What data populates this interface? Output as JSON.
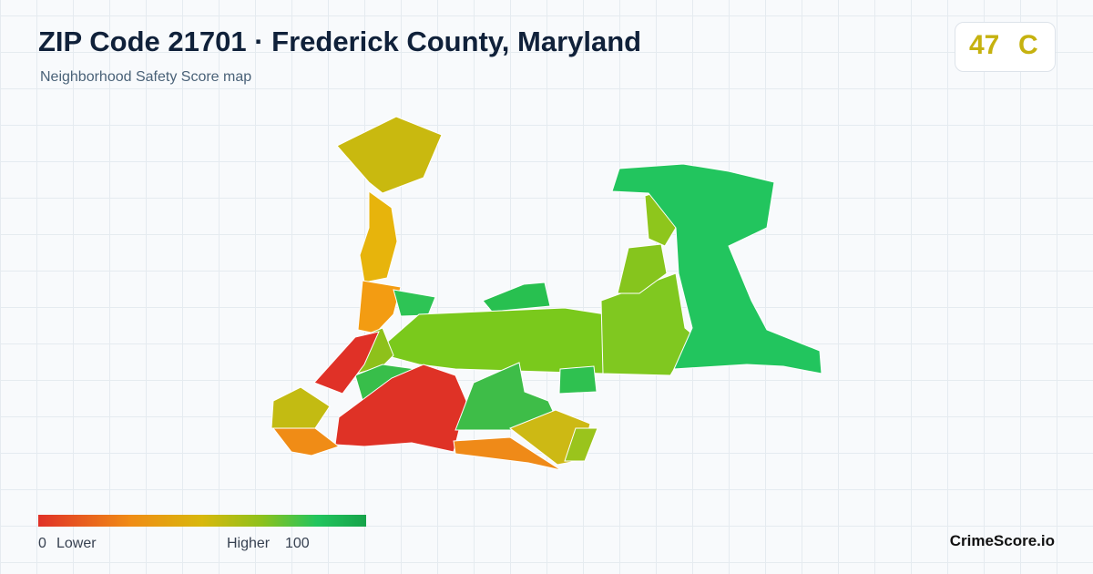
{
  "header": {
    "title": "ZIP Code 21701 · Frederick County, Maryland",
    "subtitle": "Neighborhood Safety Score map"
  },
  "score": {
    "value": 47,
    "grade": "C"
  },
  "legend": {
    "min": 0,
    "min_label": "Lower",
    "max_label": "Higher",
    "max": 100
  },
  "brand": "CrimeScore.io"
}
